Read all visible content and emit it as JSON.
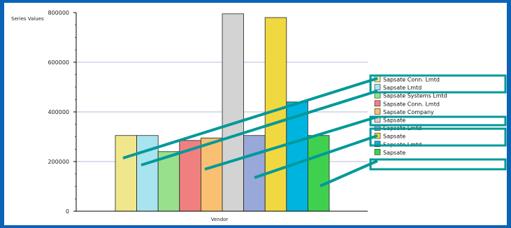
{
  "chart_data": {
    "type": "bar",
    "title": "",
    "ylabel": "Series Values",
    "xlabel": "Vendor",
    "ylim": [
      0,
      800000
    ],
    "y_ticks": [
      {
        "value": 0,
        "label": "0"
      },
      {
        "value": 200000,
        "label": "200000"
      },
      {
        "value": 400000,
        "label": "400000"
      },
      {
        "value": 600000,
        "label": "600000"
      },
      {
        "value": 800000,
        "label": "800000"
      }
    ],
    "grid": true,
    "legend_position": "right",
    "series": [
      {
        "name": "Sapsate Conn. Lmtd",
        "color": "#f0e68c",
        "value": 305000
      },
      {
        "name": "Sapsate Lmtd",
        "color": "#a8e4f0",
        "value": 305000
      },
      {
        "name": "Sapsate Systems Lmtd",
        "color": "#98e08c",
        "value": 240000
      },
      {
        "name": "Sapsate Conn. Lmtd",
        "color": "#f08080",
        "value": 285000
      },
      {
        "name": "Sapsate Company",
        "color": "#f8c070",
        "value": 295000
      },
      {
        "name": "Sapsate",
        "color": "#d3d3d3",
        "value": 795000
      },
      {
        "name": "Sapsate Lmtd",
        "color": "#98a8d8",
        "value": 305000
      },
      {
        "name": "Sapsate",
        "color": "#f0d840",
        "value": 780000
      },
      {
        "name": "Sapsate Lmtd",
        "color": "#00b4e0",
        "value": 440000
      },
      {
        "name": "Sapsate",
        "color": "#40d050",
        "value": 305000
      }
    ],
    "connector_color": "#009999"
  }
}
